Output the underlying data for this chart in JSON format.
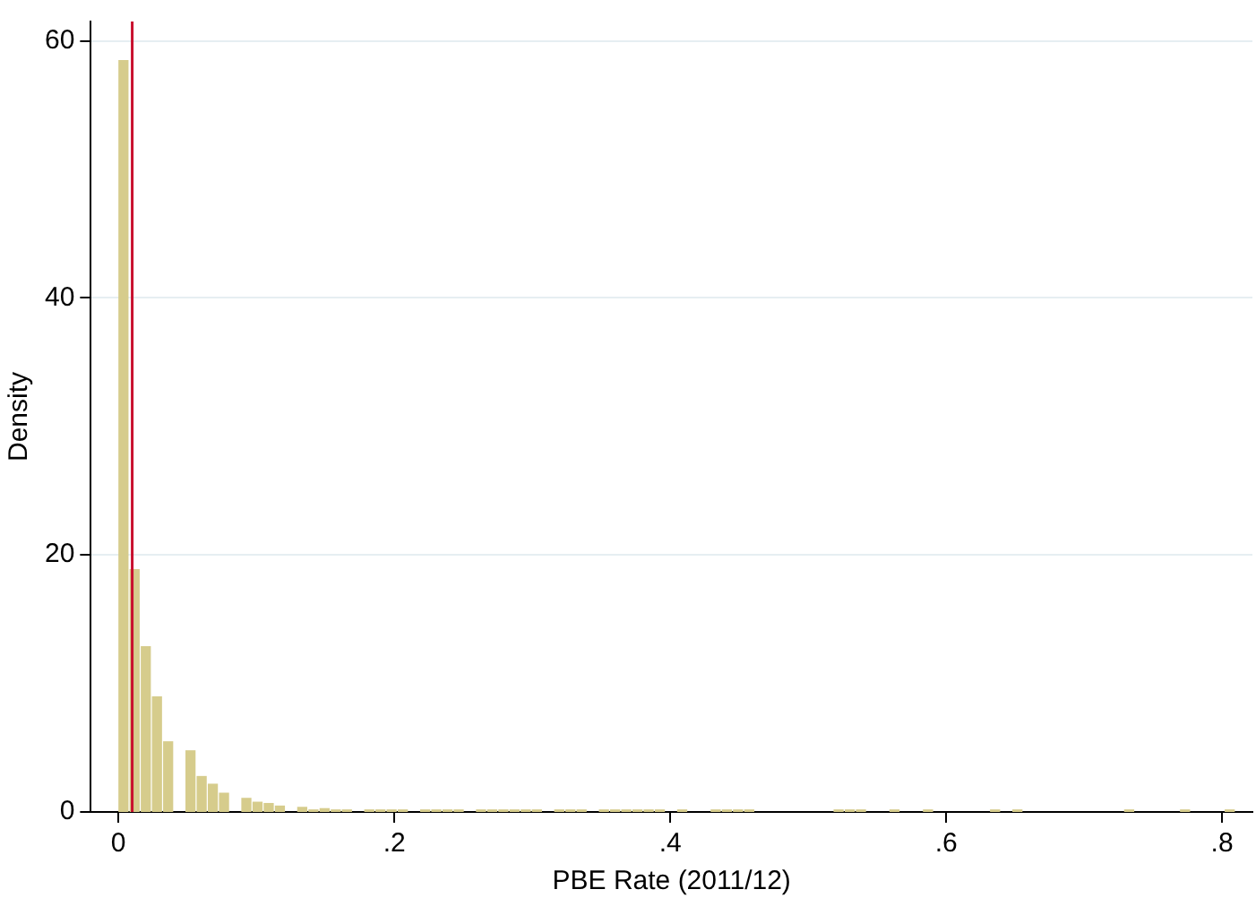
{
  "chart_data": {
    "type": "histogram",
    "xlabel": "PBE Rate (2011/12)",
    "ylabel": "Density",
    "bins": [
      0,
      0.0081,
      0.0162,
      0.0243,
      0.0324,
      0.0405,
      0.0486,
      0.0567,
      0.0648,
      0.0729,
      0.081,
      0.0891,
      0.0972,
      0.1053,
      0.1134,
      0.1215,
      0.1296,
      0.1377,
      0.1458,
      0.1539,
      0.162,
      0.1701,
      0.1782,
      0.1863,
      0.1944,
      0.2025,
      0.2106,
      0.2187,
      0.2268,
      0.2349,
      0.243,
      0.2511,
      0.2592,
      0.2673,
      0.2754,
      0.2835,
      0.2916,
      0.2997,
      0.3078,
      0.3159,
      0.324,
      0.3321,
      0.3402,
      0.3483,
      0.3564,
      0.3645,
      0.3726,
      0.3807,
      0.3888,
      0.3969,
      0.405,
      0.4131,
      0.4212,
      0.4293,
      0.4374,
      0.4455,
      0.4536,
      0.4617,
      0.4698,
      0.4779,
      0.486,
      0.4941,
      0.5022,
      0.5103,
      0.5184,
      0.5265,
      0.5346,
      0.5427,
      0.5508,
      0.5589,
      0.567,
      0.5751,
      0.5832,
      0.5913,
      0.5994,
      0.6075,
      0.6156,
      0.6237,
      0.6318,
      0.6399,
      0.648,
      0.6561,
      0.6642,
      0.6723,
      0.6804,
      0.6885,
      0.6966,
      0.7047,
      0.7128,
      0.7209,
      0.729,
      0.7371,
      0.7452,
      0.7533,
      0.7614,
      0.7695,
      0.7776,
      0.7857,
      0.7938,
      0.8019,
      0.81
    ],
    "values": [
      58.5,
      18.9,
      12.9,
      9,
      5.5,
      0,
      4.8,
      2.8,
      2.2,
      1.5,
      0,
      1.1,
      0.8,
      0.7,
      0.5,
      0,
      0.4,
      0.2,
      0.3,
      0.2,
      0.2,
      0,
      0.2,
      0.2,
      0.2,
      0.2,
      0,
      0.2,
      0.2,
      0.2,
      0.2,
      0,
      0.2,
      0.2,
      0.2,
      0.2,
      0.2,
      0.2,
      0,
      0.2,
      0.2,
      0.2,
      0,
      0.2,
      0.2,
      0.2,
      0.2,
      0.2,
      0.2,
      0,
      0.2,
      0,
      0,
      0.2,
      0.2,
      0.2,
      0.2,
      0,
      0,
      0,
      0,
      0,
      0,
      0,
      0.2,
      0.2,
      0.2,
      0,
      0,
      0.2,
      0,
      0,
      0.2,
      0,
      0,
      0,
      0,
      0,
      0.2,
      0,
      0.2,
      0,
      0,
      0,
      0,
      0,
      0,
      0,
      0,
      0,
      0.2,
      0,
      0,
      0,
      0,
      0.2,
      0,
      0,
      0,
      0.2
    ],
    "color": "#d6cc8c",
    "xlim": [
      -0.02,
      0.822
    ],
    "xticks": [
      0,
      {
        "value": 0.2,
        "label": ".2"
      },
      {
        "value": 0.4,
        "label": ".4"
      },
      {
        "value": 0.6,
        "label": ".6"
      },
      {
        "value": 0.8,
        "label": ".8"
      }
    ],
    "ylim": [
      0,
      61.5
    ],
    "yticks": [
      0,
      20,
      40,
      60
    ],
    "grid": "y",
    "ref_lines": [
      {
        "axis": "x",
        "value": 0.01,
        "color": "#c8102e"
      }
    ]
  }
}
